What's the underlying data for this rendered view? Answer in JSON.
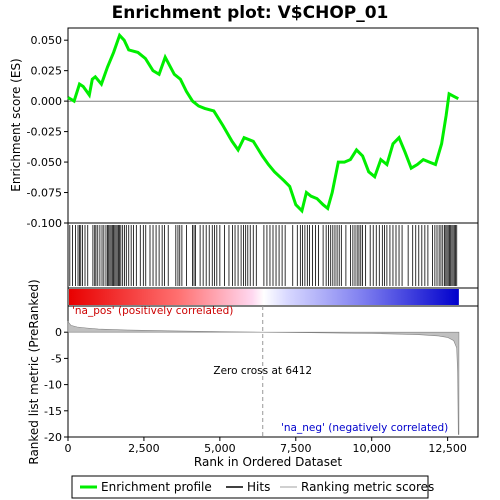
{
  "chart_data": {
    "type": "line",
    "title": "Enrichment plot: V$CHOP_01",
    "es_panel": {
      "ylabel": "Enrichment score (ES)",
      "ylim": [
        -0.1,
        0.06
      ],
      "yticks": [
        "0.050",
        "0.025",
        "0.000",
        "-0.025",
        "-0.050",
        "-0.075",
        "-0.100"
      ],
      "ytick_values": [
        0.05,
        0.025,
        0.0,
        -0.025,
        -0.05,
        -0.075,
        -0.1
      ],
      "series": [
        {
          "name": "Enrichment profile",
          "color": "#00ee00",
          "x": [
            0,
            200,
            380,
            500,
            700,
            800,
            900,
            1100,
            1300,
            1500,
            1700,
            1850,
            2000,
            2300,
            2550,
            2800,
            3000,
            3200,
            3500,
            3700,
            3900,
            4100,
            4300,
            4500,
            4800,
            5100,
            5400,
            5600,
            5800,
            6100,
            6400,
            6600,
            6800,
            7100,
            7300,
            7500,
            7700,
            7850,
            8000,
            8200,
            8400,
            8550,
            8700,
            8900,
            9100,
            9300,
            9500,
            9700,
            9900,
            10100,
            10300,
            10500,
            10700,
            10900,
            11100,
            11300,
            11500,
            11700,
            11900,
            12100,
            12300,
            12450,
            12550,
            12700,
            12850
          ],
          "y": [
            0.003,
            0.0,
            0.014,
            0.012,
            0.005,
            0.018,
            0.02,
            0.014,
            0.028,
            0.04,
            0.054,
            0.05,
            0.042,
            0.04,
            0.035,
            0.025,
            0.022,
            0.036,
            0.022,
            0.018,
            0.008,
            0.0,
            -0.004,
            -0.006,
            -0.008,
            -0.02,
            -0.033,
            -0.04,
            -0.03,
            -0.033,
            -0.045,
            -0.052,
            -0.058,
            -0.065,
            -0.07,
            -0.085,
            -0.09,
            -0.075,
            -0.078,
            -0.08,
            -0.085,
            -0.088,
            -0.075,
            -0.05,
            -0.05,
            -0.048,
            -0.04,
            -0.045,
            -0.058,
            -0.062,
            -0.048,
            -0.052,
            -0.035,
            -0.03,
            -0.042,
            -0.055,
            -0.052,
            -0.048,
            -0.05,
            -0.052,
            -0.035,
            -0.012,
            0.006,
            0.004,
            0.002
          ]
        }
      ]
    },
    "hits": {
      "legend": "Hits",
      "positions": [
        60,
        150,
        250,
        330,
        380,
        420,
        480,
        560,
        650,
        820,
        880,
        920,
        980,
        1050,
        1120,
        1180,
        1250,
        1300,
        1340,
        1380,
        1420,
        1460,
        1500,
        1540,
        1580,
        1620,
        1660,
        1700,
        1740,
        1800,
        1860,
        1920,
        2000,
        2080,
        2160,
        2250,
        2380,
        2480,
        2560,
        2700,
        2800,
        2900,
        3000,
        3100,
        3180,
        3300,
        3550,
        3620,
        3680,
        3750,
        3900,
        4100,
        4150,
        4200,
        4350,
        4450,
        4550,
        4650,
        4750,
        4820,
        4900,
        5000,
        5150,
        5300,
        5420,
        5500,
        5600,
        5700,
        5780,
        5850,
        5920,
        6000,
        6100,
        6200,
        6450,
        6550,
        6650,
        6750,
        6850,
        6950,
        7050,
        7150,
        7400,
        7550,
        7650,
        7720,
        7800,
        7880,
        7950,
        8050,
        8150,
        8250,
        8400,
        8500,
        8580,
        8650,
        8720,
        8790,
        8860,
        8930,
        9000,
        9150,
        9300,
        9380,
        9450,
        9520,
        9580,
        9640,
        9700,
        9800,
        9950,
        10050,
        10150,
        10250,
        10350,
        10420,
        10500,
        10600,
        10700,
        10800,
        10900,
        11000,
        11200,
        11350,
        11450,
        11550,
        11650,
        11750,
        11850,
        12000,
        12080,
        12150,
        12220,
        12280,
        12340,
        12400,
        12440,
        12480,
        12520,
        12560,
        12600,
        12640,
        12680,
        12720,
        12760,
        12800
      ]
    },
    "rank_bar": {
      "pos_label": "'na_pos' (positively correlated)",
      "neg_label": "'na_neg' (negatively correlated)",
      "pos_color": "#ff0000",
      "neg_color": "#0000ff"
    },
    "metric_panel": {
      "ylabel": "Ranked list metric (PreRanked)",
      "ylim": [
        -20,
        5
      ],
      "yticks": [
        "0",
        "-5",
        "-10",
        "-15",
        "-20"
      ],
      "ytick_values": [
        0,
        -5,
        -10,
        -15,
        -20
      ],
      "xlabel": "Rank in Ordered Dataset",
      "xlim": [
        0,
        13500
      ],
      "xticks": [
        "0",
        "2,500",
        "5,000",
        "7,500",
        "10,000",
        "12,500"
      ],
      "xtick_values": [
        0,
        2500,
        5000,
        7500,
        10000,
        12500
      ],
      "zero_cross_label": "Zero cross at 6412",
      "zero_cross": 6412,
      "curve_x": [
        0,
        100,
        300,
        600,
        1000,
        2000,
        3500,
        5000,
        6412,
        8000,
        10000,
        11500,
        12200,
        12500,
        12700,
        12800,
        12830,
        12850,
        12870
      ],
      "curve_y": [
        2.0,
        1.3,
        1.0,
        0.8,
        0.6,
        0.4,
        0.25,
        0.1,
        0.0,
        -0.1,
        -0.25,
        -0.45,
        -0.7,
        -1.0,
        -1.6,
        -3.0,
        -8.0,
        -19.5,
        -19.5
      ]
    },
    "legend": [
      "Enrichment profile",
      "Hits",
      "Ranking metric scores"
    ],
    "colors": {
      "profile": "#00ee00",
      "hits": "#000000",
      "metric_fill": "#c0c0c0",
      "zero_line": "#999999"
    }
  }
}
